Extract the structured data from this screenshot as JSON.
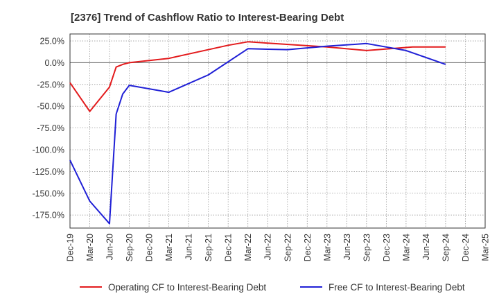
{
  "chart_data": {
    "type": "line",
    "title": "[2376]  Trend of Cashflow Ratio to Interest-Bearing Debt",
    "xlabel": "",
    "ylabel": "",
    "ylim": [
      -190,
      33
    ],
    "y_ticks": [
      25,
      0,
      -25,
      -50,
      -75,
      -100,
      -125,
      -150,
      -175
    ],
    "y_tick_labels": [
      "25.0%",
      "0.0%",
      "-25.0%",
      "-50.0%",
      "-75.0%",
      "-100.0%",
      "-125.0%",
      "-150.0%",
      "-175.0%"
    ],
    "x_tick_labels": [
      "Dec-19",
      "Mar-20",
      "Jun-20",
      "Sep-20",
      "Dec-20",
      "Mar-21",
      "Jun-21",
      "Sep-21",
      "Dec-21",
      "Mar-22",
      "Jun-22",
      "Sep-22",
      "Dec-22",
      "Mar-23",
      "Jun-23",
      "Sep-23",
      "Dec-23",
      "Mar-24",
      "Jun-24",
      "Sep-24",
      "Dec-24",
      "Mar-25"
    ],
    "xlim": [
      0,
      63
    ],
    "grid": true,
    "legend_position": "bottom",
    "series": [
      {
        "name": "Operating CF to Interest-Bearing Debt",
        "color": "#e31a1c",
        "points": [
          [
            0,
            -23
          ],
          [
            3,
            -56
          ],
          [
            6,
            -28
          ],
          [
            7,
            -5
          ],
          [
            8,
            -2
          ],
          [
            9,
            0
          ],
          [
            15,
            5
          ],
          [
            24,
            20
          ],
          [
            27,
            24
          ],
          [
            39,
            18
          ],
          [
            45,
            14
          ],
          [
            52,
            18
          ],
          [
            57,
            18
          ]
        ]
      },
      {
        "name": "Free CF to Interest-Bearing Debt",
        "color": "#1f1fd6",
        "points": [
          [
            0,
            -112
          ],
          [
            3,
            -159
          ],
          [
            6,
            -185
          ],
          [
            7,
            -59
          ],
          [
            8,
            -36
          ],
          [
            9,
            -26
          ],
          [
            15,
            -34
          ],
          [
            21,
            -14
          ],
          [
            27,
            16
          ],
          [
            33,
            15
          ],
          [
            39,
            19
          ],
          [
            45,
            22
          ],
          [
            51,
            14
          ],
          [
            57,
            -2
          ]
        ]
      }
    ]
  }
}
